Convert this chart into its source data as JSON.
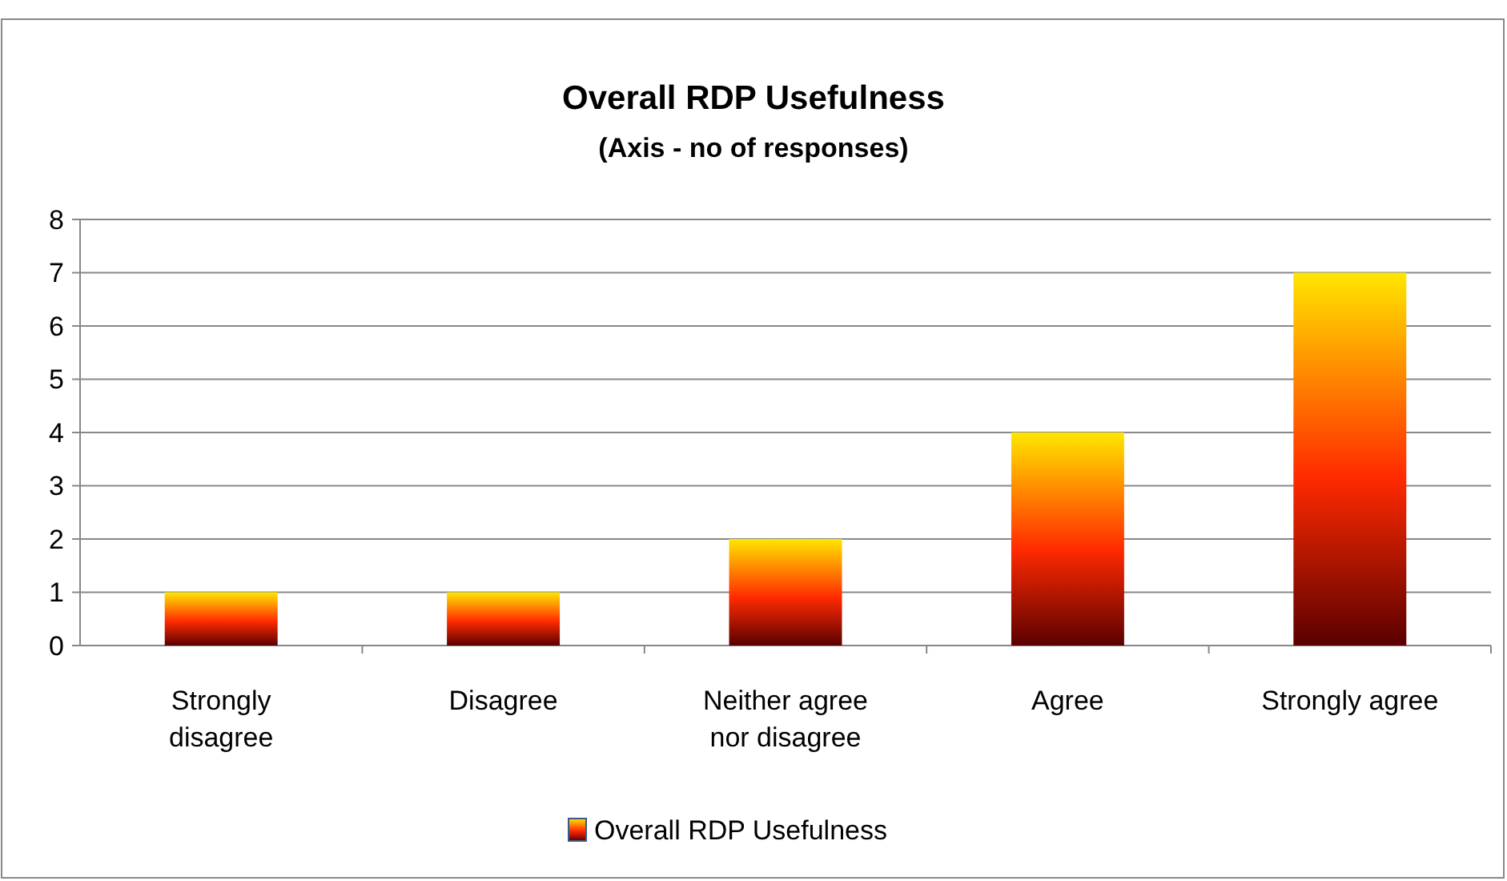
{
  "chart_data": {
    "type": "bar",
    "title": "Overall RDP Usefulness",
    "subtitle": "(Axis  - no of responses)",
    "categories": [
      "Strongly disagree",
      "Disagree",
      "Neither agree nor disagree",
      "Agree",
      "Strongly agree"
    ],
    "series": [
      {
        "name": "Overall RDP Usefulness",
        "color": "#ff2a00",
        "values": [
          1,
          1,
          2,
          4,
          7
        ]
      }
    ],
    "ylim": [
      0,
      8
    ],
    "yticks": [
      0,
      1,
      2,
      3,
      4,
      5,
      6,
      7,
      8
    ],
    "grid": "y",
    "legend": "bottom"
  }
}
